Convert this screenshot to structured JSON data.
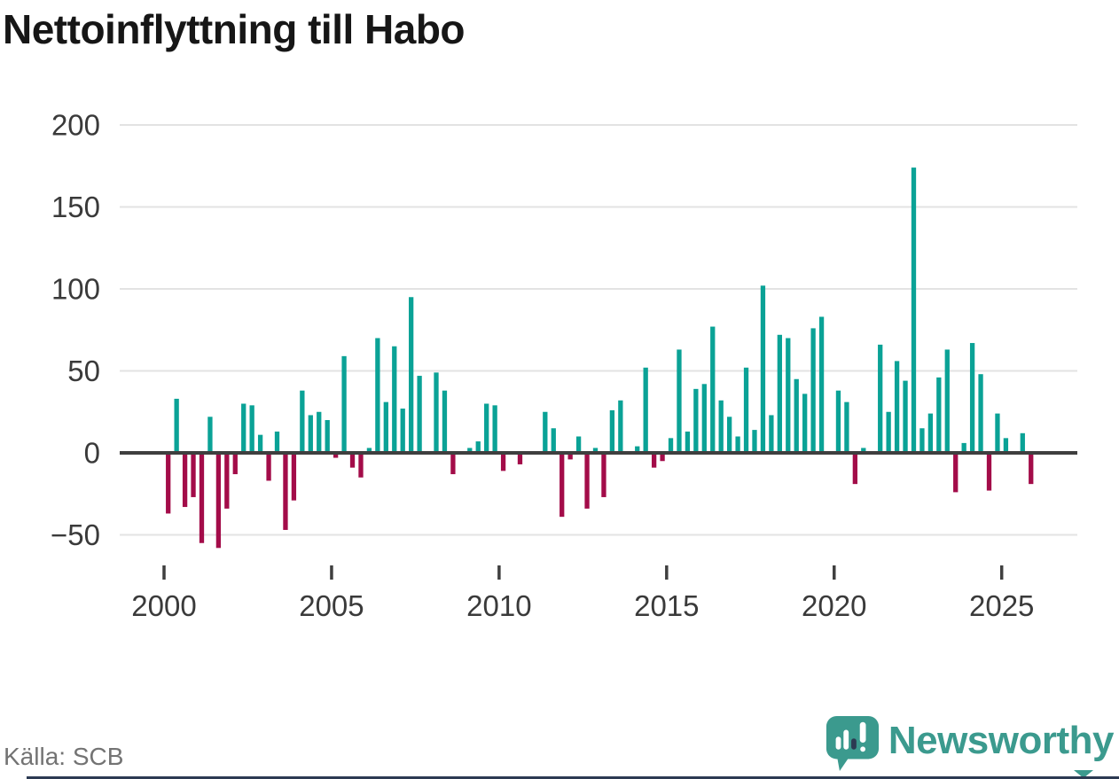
{
  "header": {
    "title": "Nettoinflyttning till Habo"
  },
  "footer": {
    "source_label": "Källa: SCB",
    "brand": "Newsworthy"
  },
  "colors": {
    "positive_bar": "#0aa296",
    "negative_bar": "#a30c49",
    "zero_line": "#3f3f3f",
    "gridline": "#e3e3e3",
    "axis_text": "#3a3a3a",
    "brand_teal": "#3b9a8e",
    "brand_navy": "#2c3a52"
  },
  "chart_data": {
    "type": "bar",
    "title": "Nettoinflyttning till Habo",
    "frequency": "quarterly",
    "x_start": "2000-Q1",
    "x_end": "2025-Q4",
    "xlabel": "",
    "ylabel": "",
    "ylim": [
      -75,
      210
    ],
    "grid": true,
    "legend": "none",
    "y_ticks": [
      200,
      150,
      100,
      50,
      0,
      -50
    ],
    "x_ticks": [
      2000,
      2005,
      2010,
      2015,
      2020,
      2025
    ],
    "series_by_year": [
      {
        "year": 2000,
        "values": [
          -37,
          33,
          -33,
          -27
        ]
      },
      {
        "year": 2001,
        "values": [
          -55,
          22,
          -58,
          -34
        ]
      },
      {
        "year": 2002,
        "values": [
          -13,
          30,
          29,
          11
        ]
      },
      {
        "year": 2003,
        "values": [
          -17,
          13,
          -47,
          -29
        ]
      },
      {
        "year": 2004,
        "values": [
          38,
          23,
          25,
          20
        ]
      },
      {
        "year": 2005,
        "values": [
          -3,
          59,
          -9,
          -15
        ]
      },
      {
        "year": 2006,
        "values": [
          3,
          70,
          31,
          65
        ]
      },
      {
        "year": 2007,
        "values": [
          27,
          95,
          47,
          0
        ]
      },
      {
        "year": 2008,
        "values": [
          49,
          38,
          -13,
          0
        ]
      },
      {
        "year": 2009,
        "values": [
          3,
          7,
          30,
          29
        ]
      },
      {
        "year": 2010,
        "values": [
          -11,
          0,
          -7,
          0
        ]
      },
      {
        "year": 2011,
        "values": [
          0,
          25,
          15,
          -39
        ]
      },
      {
        "year": 2012,
        "values": [
          -4,
          10,
          -34,
          3
        ]
      },
      {
        "year": 2013,
        "values": [
          -27,
          26,
          32,
          0
        ]
      },
      {
        "year": 2014,
        "values": [
          4,
          52,
          -9,
          -5
        ]
      },
      {
        "year": 2015,
        "values": [
          9,
          63,
          13,
          39
        ]
      },
      {
        "year": 2016,
        "values": [
          42,
          77,
          32,
          22
        ]
      },
      {
        "year": 2017,
        "values": [
          10,
          52,
          14,
          102
        ]
      },
      {
        "year": 2018,
        "values": [
          23,
          72,
          70,
          45
        ]
      },
      {
        "year": 2019,
        "values": [
          36,
          76,
          83,
          0
        ]
      },
      {
        "year": 2020,
        "values": [
          38,
          31,
          -19,
          3
        ]
      },
      {
        "year": 2021,
        "values": [
          0,
          66,
          25,
          56
        ]
      },
      {
        "year": 2022,
        "values": [
          44,
          174,
          15,
          24
        ]
      },
      {
        "year": 2023,
        "values": [
          46,
          63,
          -24,
          6
        ]
      },
      {
        "year": 2024,
        "values": [
          67,
          48,
          -23,
          24
        ]
      },
      {
        "year": 2025,
        "values": [
          9,
          0,
          12,
          -19
        ]
      }
    ]
  }
}
